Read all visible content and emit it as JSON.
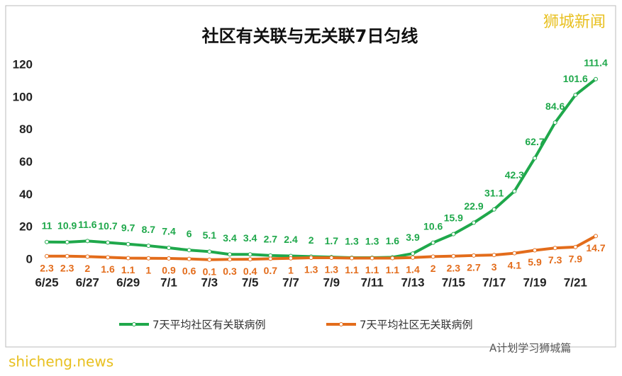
{
  "chart_data": {
    "type": "line",
    "title": "社区有关联与无关联7日匀线",
    "watermark": "狮城新闻",
    "footer_left": "shicheng.news",
    "footer_right": "A计划学习狮城篇",
    "categories": [
      "6/25",
      null,
      "6/27",
      null,
      "6/29",
      null,
      "7/1",
      null,
      "7/3",
      null,
      "7/5",
      null,
      "7/7",
      null,
      "7/9",
      null,
      "7/11",
      null,
      "7/13",
      null,
      "7/15",
      null,
      "7/17",
      null,
      "7/19",
      null,
      "7/21",
      null
    ],
    "series": [
      {
        "name": "7天平均社区有关联病例",
        "color": "#1fa84b",
        "label_side": "above",
        "values": [
          11,
          10.9,
          11.6,
          10.7,
          9.7,
          8.7,
          7.4,
          6,
          5.1,
          3.4,
          3.4,
          2.7,
          2.4,
          2,
          1.7,
          1.3,
          1.3,
          1.6,
          3.9,
          10.6,
          15.9,
          22.9,
          31.1,
          42.3,
          62.7,
          84.6,
          101.6,
          111.4
        ]
      },
      {
        "name": "7天平均社区无关联病例",
        "color": "#e36c1b",
        "label_side": "below",
        "values": [
          2.3,
          2.3,
          2,
          1.6,
          1.1,
          1,
          0.9,
          0.6,
          0.1,
          0.3,
          0.4,
          0.7,
          1,
          1.3,
          1.3,
          1.1,
          1.1,
          1.1,
          1.4,
          2,
          2.3,
          2.7,
          3,
          4.1,
          5.9,
          7.3,
          7.9,
          14.7
        ]
      }
    ],
    "ylim": [
      0,
      120
    ],
    "yticks": [
      0,
      20,
      40,
      60,
      80,
      100,
      120
    ],
    "grid": false
  }
}
